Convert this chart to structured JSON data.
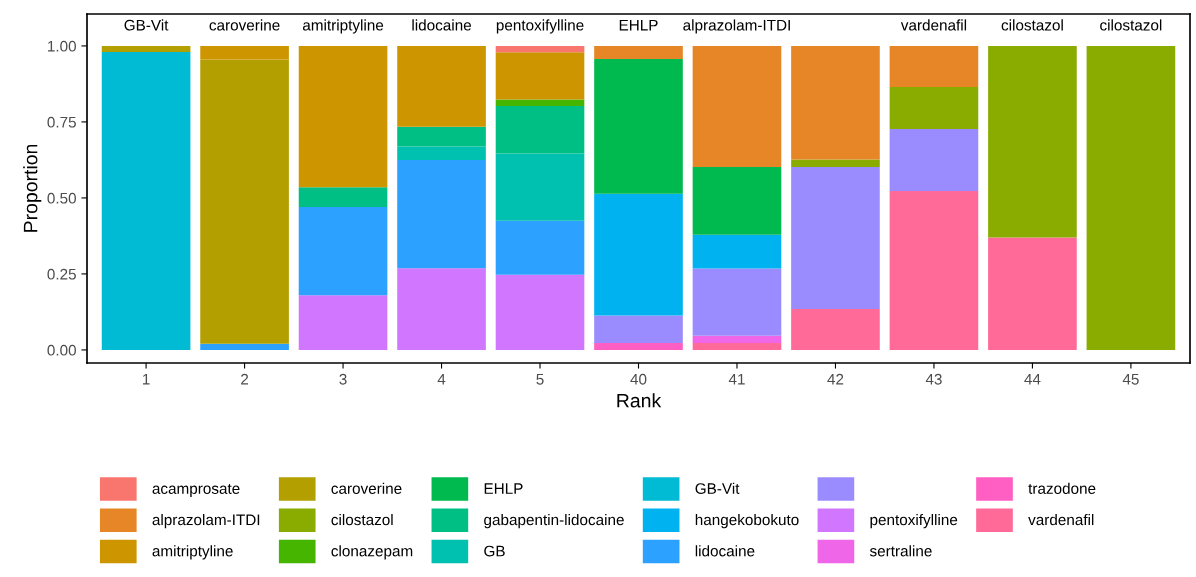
{
  "chart_data": {
    "type": "bar",
    "stacked": true,
    "xlabel": "Rank",
    "ylabel": "Proportion",
    "categories": [
      "1",
      "2",
      "3",
      "4",
      "5",
      "40",
      "41",
      "42",
      "43",
      "44",
      "45"
    ],
    "ylim": [
      -0.043,
      1.105
    ],
    "yticks": [
      {
        "value": 0,
        "label": "0.00"
      },
      {
        "value": 0.25,
        "label": "0.25"
      },
      {
        "value": 0.5,
        "label": "0.50"
      },
      {
        "value": 0.75,
        "label": "0.75"
      },
      {
        "value": 1,
        "label": "1.00"
      }
    ],
    "grid": false,
    "legend": "bottom",
    "series": [
      {
        "name": "vardenafil",
        "color": "#ff6a98",
        "values": [
          0,
          0,
          0,
          0,
          0,
          0,
          0.023,
          0.135,
          0.523,
          0.37,
          0
        ]
      },
      {
        "name": "trazodone",
        "color": "#ff5fc3",
        "values": [
          0,
          0,
          0,
          0,
          0,
          0.023,
          0,
          0,
          0,
          0,
          0
        ]
      },
      {
        "name": "sertraline",
        "color": "#f066e8",
        "values": [
          0,
          0,
          0,
          0,
          0,
          0,
          0.024,
          0,
          0,
          0,
          0
        ]
      },
      {
        "name": "pentoxifylline",
        "color": "#d177ff",
        "values": [
          0,
          0,
          0.18,
          0.269,
          0.247,
          0,
          0,
          0,
          0,
          0,
          0
        ]
      },
      {
        "name": null,
        "color": "#9a8cff",
        "values": [
          0,
          0,
          0,
          0,
          0,
          0.09,
          0.221,
          0.467,
          0.204,
          0,
          0
        ]
      },
      {
        "name": "lidocaine",
        "color": "#2ca1ff",
        "values": [
          0,
          0.02,
          0.29,
          0.356,
          0.178,
          0,
          0,
          0,
          0,
          0,
          0
        ]
      },
      {
        "name": "hangekobokuto",
        "color": "#00b2ef",
        "values": [
          0,
          0,
          0,
          0,
          0,
          0.401,
          0.111,
          0,
          0,
          0,
          0
        ]
      },
      {
        "name": "GB-Vit",
        "color": "#00bbd3",
        "values": [
          0.98,
          0,
          0,
          0,
          0,
          0,
          0,
          0,
          0,
          0,
          0
        ]
      },
      {
        "name": "GB",
        "color": "#00c0b0",
        "values": [
          0,
          0,
          0,
          0.044,
          0.221,
          0,
          0,
          0,
          0,
          0,
          0
        ]
      },
      {
        "name": "gabapentin-lidocaine",
        "color": "#00bf84",
        "values": [
          0,
          0,
          0.065,
          0.065,
          0.156,
          0,
          0,
          0,
          0,
          0,
          0
        ]
      },
      {
        "name": "EHLP",
        "color": "#00b94f",
        "values": [
          0,
          0,
          0,
          0,
          0,
          0.443,
          0.223,
          0,
          0,
          0,
          0
        ]
      },
      {
        "name": "clonazepam",
        "color": "#45b500",
        "values": [
          0,
          0,
          0,
          0,
          0.022,
          0,
          0,
          0,
          0,
          0,
          0
        ]
      },
      {
        "name": "cilostazol",
        "color": "#8aab00",
        "values": [
          0,
          0,
          0,
          0,
          0,
          0,
          0,
          0.024,
          0.138,
          0.63,
          1.0
        ]
      },
      {
        "name": "caroverine",
        "color": "#b39f00",
        "values": [
          0.02,
          0.935,
          0,
          0,
          0,
          0,
          0,
          0,
          0,
          0,
          0
        ]
      },
      {
        "name": "amitriptyline",
        "color": "#cd9600",
        "values": [
          0,
          0.045,
          0.465,
          0.266,
          0.155,
          0,
          0,
          0,
          0,
          0,
          0
        ]
      },
      {
        "name": "alprazolam-ITDI",
        "color": "#e68626",
        "values": [
          0,
          0,
          0,
          0,
          0,
          0.043,
          0.398,
          0.374,
          0.135,
          0,
          0
        ]
      },
      {
        "name": "acamprosate",
        "color": "#f8766d",
        "values": [
          0,
          0,
          0,
          0,
          0.021,
          0,
          0,
          0,
          0,
          0,
          0
        ]
      }
    ],
    "annotations": [
      {
        "text": "GB-Vit",
        "x": "1",
        "y": 1.0
      },
      {
        "text": "caroverine",
        "x": "2",
        "y": 1.0
      },
      {
        "text": "amitriptyline",
        "x": "3",
        "y": 1.0
      },
      {
        "text": "lidocaine",
        "x": "4",
        "y": 1.0
      },
      {
        "text": "pentoxifylline",
        "x": "5",
        "y": 1.0
      },
      {
        "text": "EHLP",
        "x": "40",
        "y": 1.0
      },
      {
        "text": "alprazolam-ITDI",
        "x": "41",
        "y": 1.0
      },
      {
        "text": "vardenafil",
        "x": "43",
        "y": 1.0
      },
      {
        "text": "cilostazol",
        "x": "44",
        "y": 1.0
      },
      {
        "text": "cilostazol",
        "x": "45",
        "y": 1.0
      }
    ]
  }
}
